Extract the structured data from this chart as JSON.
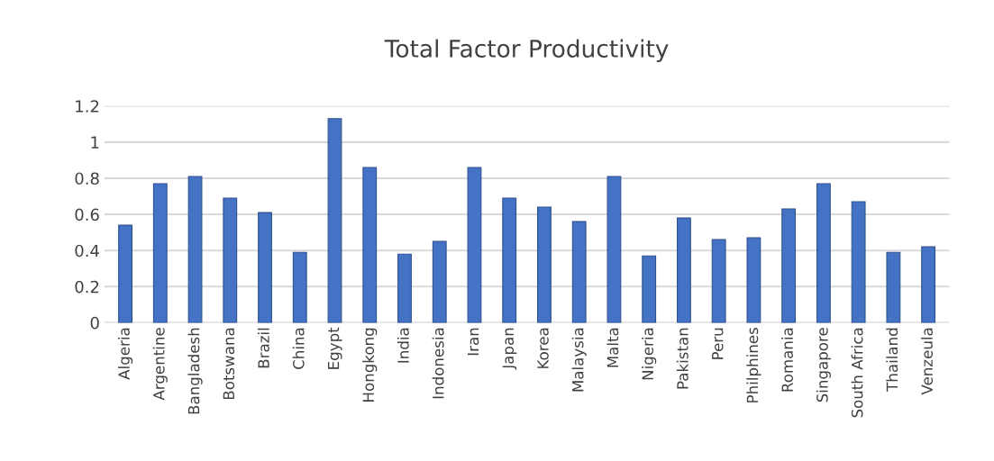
{
  "chart_data": {
    "type": "bar",
    "title": "Total Factor Productivity",
    "categories": [
      "Algeria",
      "Argentine",
      "Bangladesh",
      "Botswana",
      "Brazil",
      "China",
      "Egypt",
      "Hongkong",
      "India",
      "Indonesia",
      "Iran",
      "Japan",
      "Korea",
      "Malaysia",
      "Malta",
      "Nigeria",
      "Pakistan",
      "Peru",
      "Philphines",
      "Romania",
      "Singapore",
      "South Africa",
      "Thailand",
      "Venzeula"
    ],
    "values": [
      0.54,
      0.77,
      0.81,
      0.69,
      0.61,
      0.39,
      1.13,
      0.86,
      0.38,
      0.45,
      0.86,
      0.69,
      0.64,
      0.56,
      0.81,
      0.37,
      0.58,
      0.46,
      0.47,
      0.63,
      0.77,
      0.67,
      0.39,
      0.42
    ],
    "color": "#4472c4",
    "ylim": [
      0,
      1.2
    ],
    "yticks": [
      0,
      0.2,
      0.4,
      0.6,
      0.8,
      1,
      1.2
    ],
    "grid": "y"
  }
}
